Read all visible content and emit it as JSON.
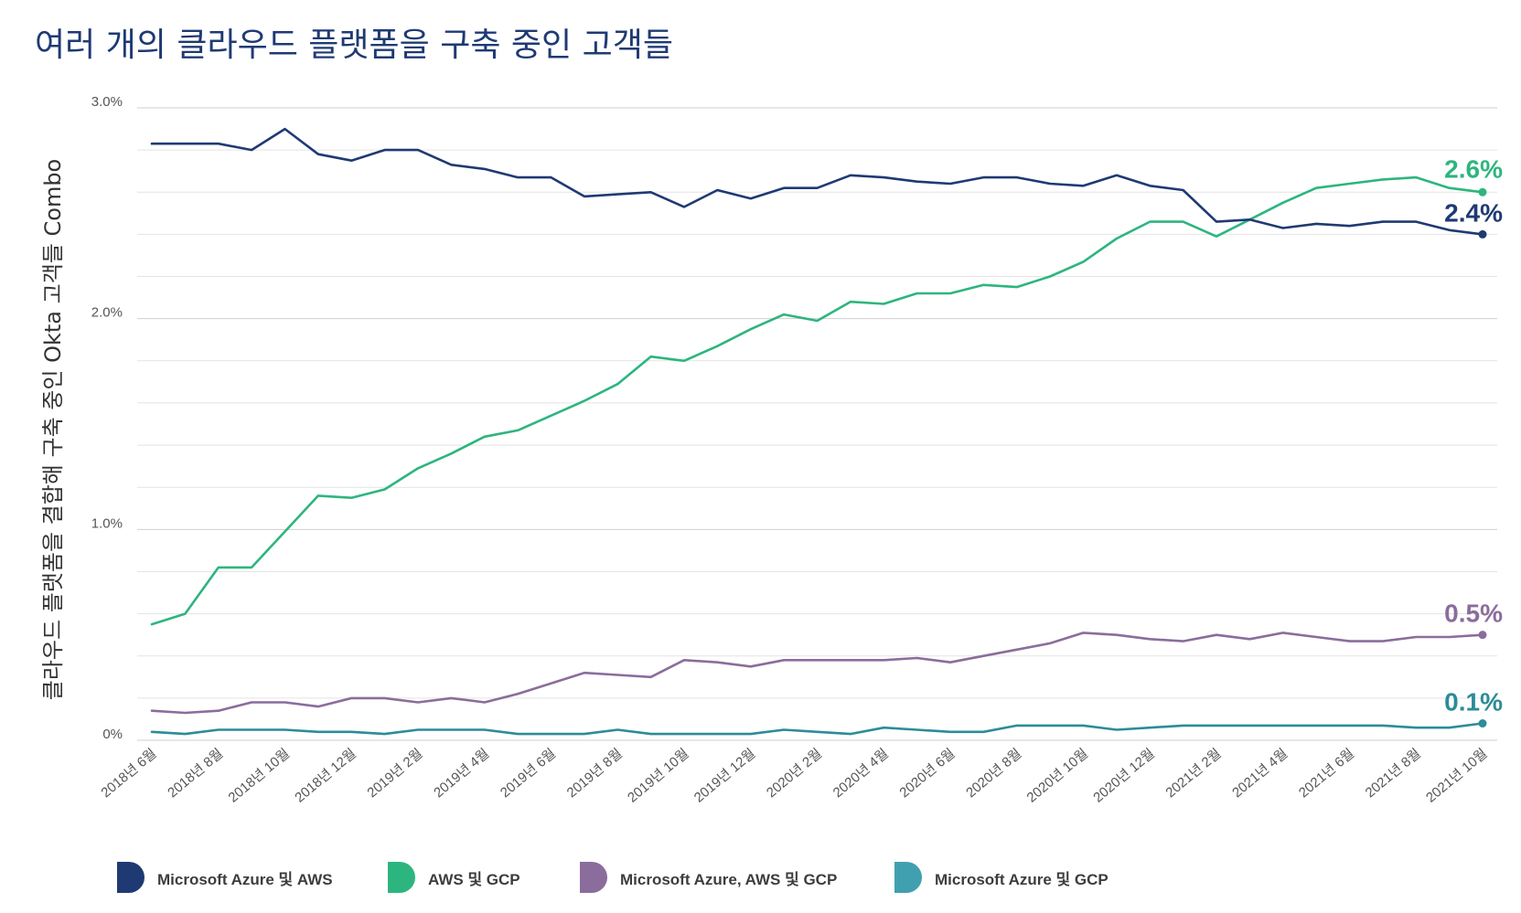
{
  "chart_data": {
    "type": "line",
    "title": "여러 개의 클라우드 플랫폼을 구축 중인 고객들",
    "ylabel": "클라우드 플랫폼을 결합해 구축 중인 Okta 고객들 Combo",
    "xlabel": "",
    "ylim": [
      0,
      3.0
    ],
    "y_ticks": [
      {
        "value": 0,
        "label": "0%"
      },
      {
        "value": 1.0,
        "label": "1.0%"
      },
      {
        "value": 2.0,
        "label": "2.0%"
      },
      {
        "value": 3.0,
        "label": "3.0%"
      }
    ],
    "minor_gridline_step": 0.2,
    "x_points": 41,
    "x_tick_labels": [
      {
        "index": 0,
        "label": "2018년 6월"
      },
      {
        "index": 2,
        "label": "2018년 8월"
      },
      {
        "index": 4,
        "label": "2018년 10월"
      },
      {
        "index": 6,
        "label": "2018년 12월"
      },
      {
        "index": 8,
        "label": "2019년 2월"
      },
      {
        "index": 10,
        "label": "2019년 4월"
      },
      {
        "index": 12,
        "label": "2019년 6월"
      },
      {
        "index": 14,
        "label": "2019년 8월"
      },
      {
        "index": 16,
        "label": "2019년 10월"
      },
      {
        "index": 18,
        "label": "2019년 12월"
      },
      {
        "index": 20,
        "label": "2020년 2월"
      },
      {
        "index": 22,
        "label": "2020년 4월"
      },
      {
        "index": 24,
        "label": "2020년 6월"
      },
      {
        "index": 26,
        "label": "2020년 8월"
      },
      {
        "index": 28,
        "label": "2020년 10월"
      },
      {
        "index": 30,
        "label": "2020년 12월"
      },
      {
        "index": 32,
        "label": "2021년 2월"
      },
      {
        "index": 34,
        "label": "2021년 4월"
      },
      {
        "index": 36,
        "label": "2021년 6월"
      },
      {
        "index": 38,
        "label": "2021년 8월"
      },
      {
        "index": 40,
        "label": "2021년 10월"
      }
    ],
    "series": [
      {
        "name": "Microsoft Azure 및 AWS",
        "color": "#1f3a73",
        "end_label": "2.4%",
        "values": [
          2.83,
          2.83,
          2.83,
          2.8,
          2.9,
          2.78,
          2.75,
          2.8,
          2.8,
          2.73,
          2.71,
          2.67,
          2.67,
          2.58,
          2.59,
          2.6,
          2.53,
          2.61,
          2.57,
          2.62,
          2.62,
          2.68,
          2.67,
          2.65,
          2.64,
          2.67,
          2.67,
          2.64,
          2.63,
          2.68,
          2.63,
          2.61,
          2.46,
          2.47,
          2.43,
          2.45,
          2.44,
          2.46,
          2.46,
          2.42,
          2.4
        ]
      },
      {
        "name": "AWS 및 GCP",
        "color": "#2db57f",
        "end_label": "2.6%",
        "values": [
          0.55,
          0.6,
          0.82,
          0.82,
          0.99,
          1.16,
          1.15,
          1.19,
          1.29,
          1.36,
          1.44,
          1.47,
          1.54,
          1.61,
          1.69,
          1.82,
          1.8,
          1.87,
          1.95,
          2.02,
          1.99,
          2.08,
          2.07,
          2.12,
          2.12,
          2.16,
          2.15,
          2.2,
          2.27,
          2.38,
          2.46,
          2.46,
          2.39,
          2.47,
          2.55,
          2.62,
          2.64,
          2.66,
          2.67,
          2.62,
          2.6
        ]
      },
      {
        "name": "Microsoft Azure, AWS 및 GCP",
        "color": "#8a6d9c",
        "end_label": "0.5%",
        "values": [
          0.14,
          0.13,
          0.14,
          0.18,
          0.18,
          0.16,
          0.2,
          0.2,
          0.18,
          0.2,
          0.18,
          0.22,
          0.27,
          0.32,
          0.31,
          0.3,
          0.38,
          0.37,
          0.35,
          0.38,
          0.38,
          0.38,
          0.38,
          0.39,
          0.37,
          0.4,
          0.43,
          0.46,
          0.51,
          0.5,
          0.48,
          0.47,
          0.5,
          0.48,
          0.51,
          0.49,
          0.47,
          0.47,
          0.49,
          0.49,
          0.5
        ]
      },
      {
        "name": "Microsoft Azure 및 GCP",
        "color": "#2c8c98",
        "legend_color": "#40a0b0",
        "end_label": "0.1%",
        "values": [
          0.04,
          0.03,
          0.05,
          0.05,
          0.05,
          0.04,
          0.04,
          0.03,
          0.05,
          0.05,
          0.05,
          0.03,
          0.03,
          0.03,
          0.05,
          0.03,
          0.03,
          0.03,
          0.03,
          0.05,
          0.04,
          0.03,
          0.06,
          0.05,
          0.04,
          0.04,
          0.07,
          0.07,
          0.07,
          0.05,
          0.06,
          0.07,
          0.07,
          0.07,
          0.07,
          0.07,
          0.07,
          0.07,
          0.06,
          0.06,
          0.08
        ]
      }
    ]
  }
}
